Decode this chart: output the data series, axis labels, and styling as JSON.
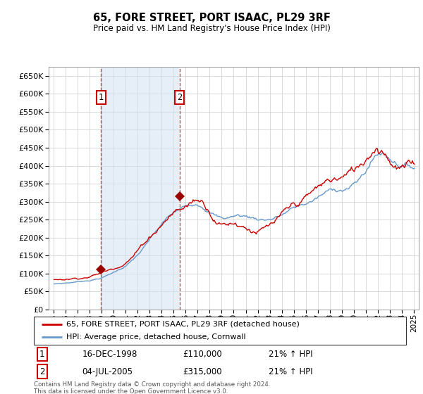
{
  "title": "65, FORE STREET, PORT ISAAC, PL29 3RF",
  "subtitle": "Price paid vs. HM Land Registry's House Price Index (HPI)",
  "ylim": [
    0,
    675000
  ],
  "yticks": [
    0,
    50000,
    100000,
    150000,
    200000,
    250000,
    300000,
    350000,
    400000,
    450000,
    500000,
    550000,
    600000,
    650000
  ],
  "background_color": "#ffffff",
  "grid_color": "#cccccc",
  "shade_color": "#cfe0f0",
  "legend_label_red": "65, FORE STREET, PORT ISAAC, PL29 3RF (detached house)",
  "legend_label_blue": "HPI: Average price, detached house, Cornwall",
  "footnote": "Contains HM Land Registry data © Crown copyright and database right 2024.\nThis data is licensed under the Open Government Licence v3.0.",
  "purchase1_date": "16-DEC-1998",
  "purchase1_price": 110000,
  "purchase1_x": 1998.96,
  "purchase1_label": "1",
  "purchase1_hpi": "21% ↑ HPI",
  "purchase2_date": "04-JUL-2005",
  "purchase2_price": 315000,
  "purchase2_x": 2005.5,
  "purchase2_label": "2",
  "purchase2_hpi": "21% ↑ HPI",
  "shade_start": 1998.96,
  "shade_end": 2005.5,
  "red_color": "#cc0000",
  "blue_color": "#6699cc",
  "dot_color": "#990000",
  "xlim_start": 1994.6,
  "xlim_end": 2025.4
}
